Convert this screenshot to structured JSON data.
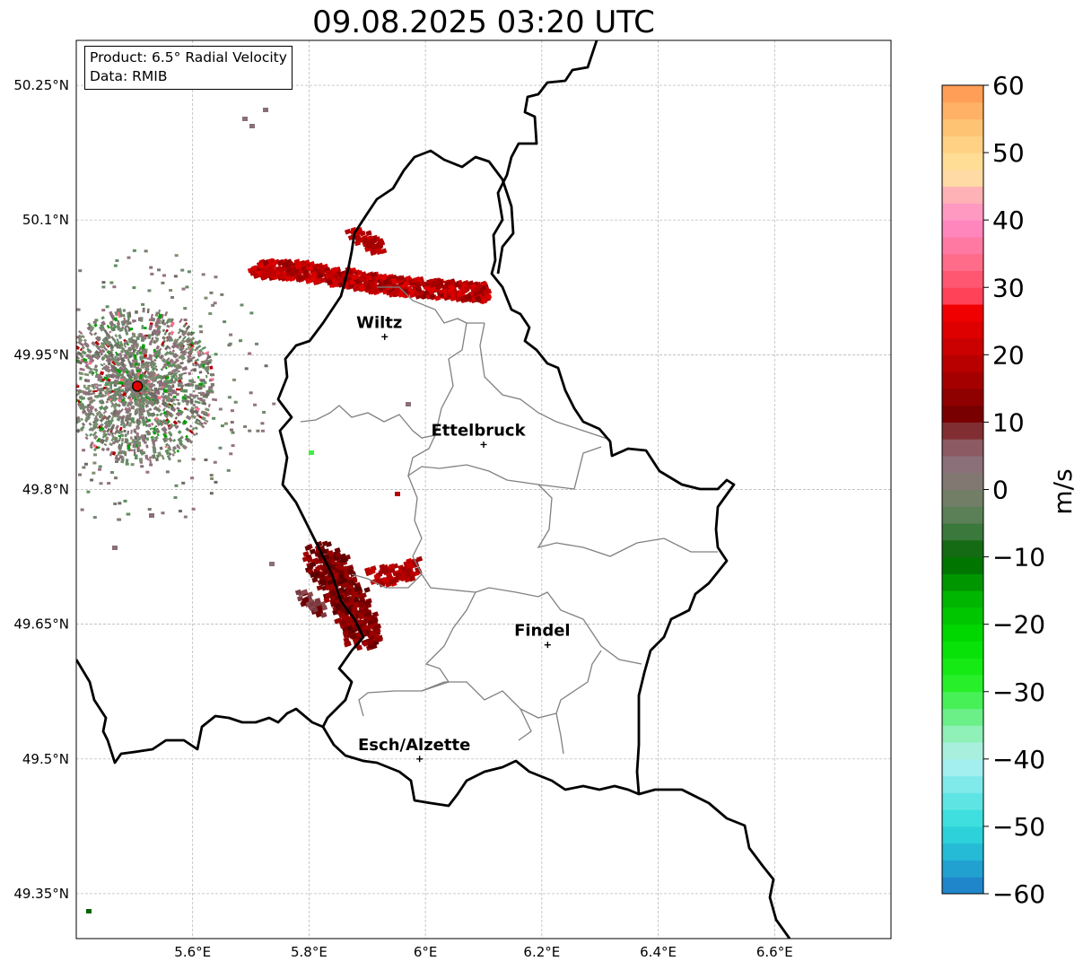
{
  "title": "09.08.2025 03:20 UTC",
  "info": {
    "product": "Product: 6.5° Radial Velocity",
    "source": "Data: RMIB"
  },
  "map": {
    "lon_range": [
      5.4,
      6.8
    ],
    "lat_range": [
      49.3,
      50.3
    ],
    "lat_ticks": [
      {
        "value": 50.25,
        "label": "50.25°N"
      },
      {
        "value": 50.1,
        "label": "50.1°N"
      },
      {
        "value": 49.95,
        "label": "49.95°N"
      },
      {
        "value": 49.8,
        "label": "49.8°N"
      },
      {
        "value": 49.65,
        "label": "49.65°N"
      },
      {
        "value": 49.5,
        "label": "49.5°N"
      },
      {
        "value": 49.35,
        "label": "49.35°N"
      }
    ],
    "lon_ticks": [
      {
        "value": 5.6,
        "label": "5.6°E"
      },
      {
        "value": 5.8,
        "label": "5.8°E"
      },
      {
        "value": 6.0,
        "label": "6°E"
      },
      {
        "value": 6.2,
        "label": "6.2°E"
      },
      {
        "value": 6.4,
        "label": "6.4°E"
      },
      {
        "value": 6.6,
        "label": "6.6°E"
      }
    ],
    "cities": [
      {
        "name": "Wiltz",
        "lon": 5.93,
        "lat": 49.97
      },
      {
        "name": "Ettelbruck",
        "lon": 6.1,
        "lat": 49.85
      },
      {
        "name": "Findel",
        "lon": 6.21,
        "lat": 49.627
      },
      {
        "name": "Esch/Alzette",
        "lon": 5.99,
        "lat": 49.5
      }
    ],
    "radar_site": {
      "lon": 5.505,
      "lat": 49.915
    }
  },
  "colorbar": {
    "unit": "m/s",
    "min": -60,
    "max": 60,
    "ticks": [
      {
        "value": 60,
        "label": "60"
      },
      {
        "value": 50,
        "label": "50"
      },
      {
        "value": 40,
        "label": "40"
      },
      {
        "value": 30,
        "label": "30"
      },
      {
        "value": 20,
        "label": "20"
      },
      {
        "value": 10,
        "label": "10"
      },
      {
        "value": 0,
        "label": "0"
      },
      {
        "value": -10,
        "label": "−10"
      },
      {
        "value": -20,
        "label": "−20"
      },
      {
        "value": -30,
        "label": "−30"
      },
      {
        "value": -40,
        "label": "−40"
      },
      {
        "value": -50,
        "label": "−50"
      },
      {
        "value": -60,
        "label": "−60"
      }
    ],
    "stops": [
      {
        "v": -60,
        "color": "#1f78c8"
      },
      {
        "v": -55,
        "color": "#22aed2"
      },
      {
        "v": -50,
        "color": "#2fdcdc"
      },
      {
        "v": -45,
        "color": "#6fe6e6"
      },
      {
        "v": -40,
        "color": "#b4f0f0"
      },
      {
        "v": -36,
        "color": "#8cf0b4"
      },
      {
        "v": -32,
        "color": "#50f064"
      },
      {
        "v": -28,
        "color": "#1ef01e"
      },
      {
        "v": -22,
        "color": "#00dc00"
      },
      {
        "v": -16,
        "color": "#00b400"
      },
      {
        "v": -10,
        "color": "#006400"
      },
      {
        "v": -5,
        "color": "#4f7f4f"
      },
      {
        "v": 0,
        "color": "#7d7d6e"
      },
      {
        "v": 4,
        "color": "#8c6e7a"
      },
      {
        "v": 8,
        "color": "#8c4a50"
      },
      {
        "v": 10,
        "color": "#6e0000"
      },
      {
        "v": 18,
        "color": "#b40000"
      },
      {
        "v": 27,
        "color": "#f50000"
      },
      {
        "v": 28,
        "color": "#ff3c50"
      },
      {
        "v": 34,
        "color": "#ff6e8c"
      },
      {
        "v": 40,
        "color": "#ff8cc8"
      },
      {
        "v": 44,
        "color": "#ffb4b4"
      },
      {
        "v": 47,
        "color": "#ffe6a0"
      },
      {
        "v": 53,
        "color": "#ffc878"
      },
      {
        "v": 60,
        "color": "#ff9650"
      }
    ]
  }
}
